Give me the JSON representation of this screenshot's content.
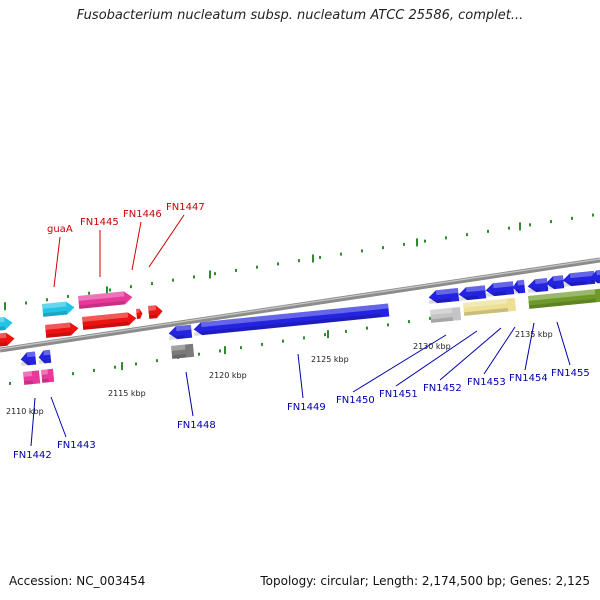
{
  "header": {
    "title": "Fusobacterium nucleatum subsp. nucleatum ATCC 25586, complet..."
  },
  "footer": {
    "accession": "Accession: NC_003454",
    "summary": "Topology: circular; Length: 2,174,500 bp; Genes: 2,125"
  },
  "ruler": {
    "tick_labels": [
      "2110 kbp",
      "2115 kbp",
      "2120 kbp",
      "2125 kbp",
      "2130 kbp",
      "2135 kbp"
    ]
  },
  "gene_labels": [
    "guaA",
    "FN1445",
    "FN1446",
    "FN1447",
    "FN1442",
    "FN1443",
    "FN1448",
    "FN1449",
    "FN1450",
    "FN1451",
    "FN1452",
    "FN1453",
    "FN1454",
    "FN1455"
  ],
  "colors": {
    "backbone": "#8c8c8c",
    "tick": "#2e8b2e",
    "label_red": "#cc0000",
    "label_blue": "#0000aa",
    "blue": "#2323e0",
    "red": "#ee1111",
    "cyan": "#22c4e6",
    "magenta": "#e8399b",
    "gray": "#7a7a7a",
    "lightgray": "#c4c4c4",
    "khaki": "#eddf93",
    "olive": "#6f9a2a"
  }
}
